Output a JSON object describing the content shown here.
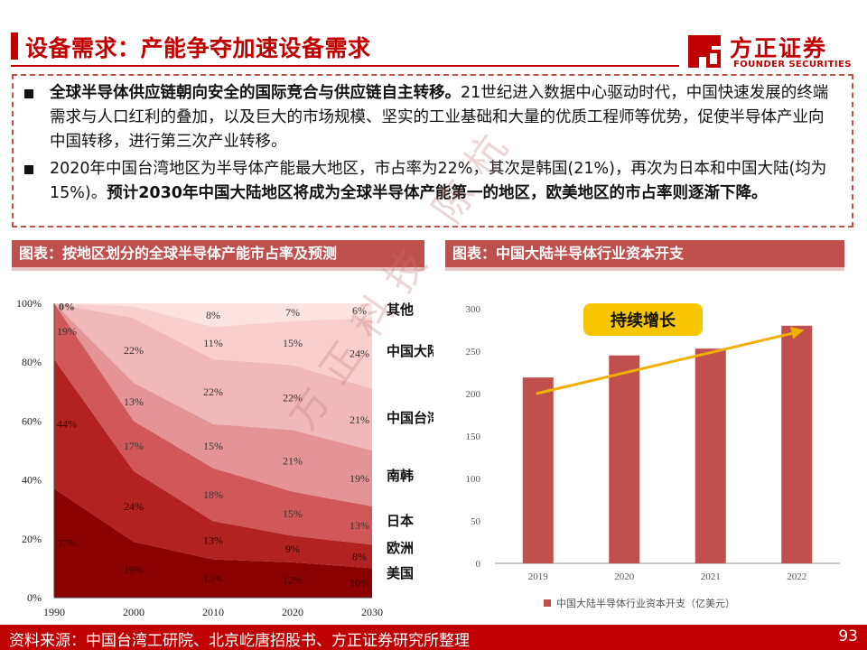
{
  "header": {
    "title": "设备需求：产能争夺加速设备需求",
    "logo_name": "方正证券",
    "logo_en": "FOUNDER SECURITIES"
  },
  "bullets": [
    {
      "bold": "全球半导体供应链朝向安全的国际竞合与供应链自主转移。",
      "text": "21世纪进入数据中心驱动时代，中国快速发展的终端需求与人口红利的叠加，以及巨大的市场规模、坚实的工业基础和大量的优质工程师等优势，促使半导体产业向中国转移，进行第三次产业转移。"
    },
    {
      "text": "2020年中国台湾地区为半导体产能最大地区，市占率为22%，其次是韩国(21%)，再次为日本和中国大陆(均为15%)。",
      "bold": "预计2030年中国大陆地区将成为全球半导体产能第一的地区，欧美地区的市占率则逐渐下降。"
    }
  ],
  "chart_titles": {
    "left": "图表：按地区划分的全球半导体产能市占率及预测",
    "right": "图表：中国大陆半导体行业资本开支"
  },
  "watermark": "方正科技 陈杭",
  "footer": {
    "source": "资料来源：中国台湾工研院、北京屹唐招股书、方正证券研究所整理",
    "page": "93"
  },
  "chart_data": [
    {
      "type": "area",
      "stacked": true,
      "x": [
        1990,
        2000,
        2010,
        2020,
        2030
      ],
      "ylim": [
        0,
        100
      ],
      "yticks": [
        "0%",
        "20%",
        "40%",
        "60%",
        "80%",
        "100%"
      ],
      "series": [
        {
          "name": "美国",
          "values": [
            37,
            19,
            13,
            12,
            10
          ],
          "labels": [
            "37%",
            "19%",
            "13%",
            "12%",
            "10%"
          ],
          "color": "#8b0000"
        },
        {
          "name": "欧洲",
          "values": [
            44,
            24,
            13,
            9,
            8
          ],
          "labels": [
            "44%",
            "24%",
            "13%",
            "9%",
            "8%"
          ],
          "color": "#b22222"
        },
        {
          "name": "日本",
          "values": [
            19,
            17,
            18,
            15,
            13
          ],
          "labels": [
            "19%",
            "17%",
            "18%",
            "15%",
            "13%"
          ],
          "color": "#d05858"
        },
        {
          "name": "南韩",
          "values": [
            0,
            13,
            15,
            21,
            19
          ],
          "labels": [
            "",
            "13%",
            "15%",
            "21%",
            "19%"
          ],
          "color": "#e49494"
        },
        {
          "name": "中国台湾",
          "values": [
            0,
            22,
            22,
            22,
            21
          ],
          "labels": [
            "",
            "22%",
            "22%",
            "22%",
            "21%"
          ],
          "color": "#f0b8b8"
        },
        {
          "name": "中国大陆",
          "values": [
            0,
            4,
            11,
            15,
            24
          ],
          "labels": [
            "",
            "",
            "11%",
            "15%",
            "24%"
          ],
          "color": "#f8cece"
        },
        {
          "name": "其他",
          "values": [
            0,
            1,
            8,
            7,
            6
          ],
          "labels": [
            "0%",
            "",
            "8%",
            "7%",
            "6%"
          ],
          "color": "#fde2e2"
        }
      ]
    },
    {
      "type": "bar",
      "categories": [
        "2019",
        "2020",
        "2021",
        "2022"
      ],
      "values": [
        219,
        245,
        253,
        280
      ],
      "ylim": [
        0,
        300
      ],
      "yticks": [
        "0",
        "50",
        "100",
        "150",
        "200",
        "250",
        "300"
      ],
      "legend": "中国大陆半导体行业资本开支（亿美元）",
      "annotation": "持续增长",
      "color": "#c0504d",
      "arrow_color": "#f0b000"
    }
  ]
}
